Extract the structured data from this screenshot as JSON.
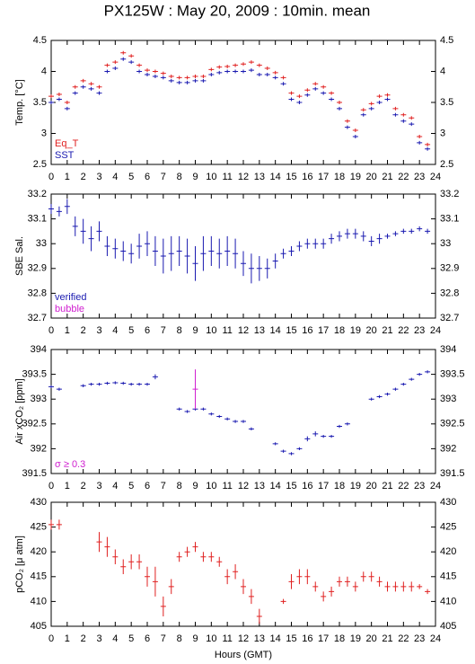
{
  "title": "PX125W : May 20, 2009 : 10min. mean",
  "chart_data": [
    {
      "type": "scatter",
      "ylabel": "Temp. [°C]",
      "legend": "lower left",
      "xlim": [
        0,
        24
      ],
      "xticks": [
        0,
        1,
        2,
        3,
        4,
        5,
        6,
        7,
        8,
        9,
        10,
        11,
        12,
        13,
        14,
        15,
        16,
        17,
        18,
        19,
        20,
        21,
        22,
        23,
        24
      ],
      "ylim": [
        2.5,
        4.5
      ],
      "yticks": [
        2.5,
        3,
        3.5,
        4,
        4.5
      ],
      "x": [
        0,
        0.5,
        1,
        1.5,
        2,
        2.5,
        3,
        3.5,
        4,
        4.5,
        5,
        5.5,
        6,
        6.5,
        7,
        7.5,
        8,
        8.5,
        9,
        9.5,
        10,
        10.5,
        11,
        11.5,
        12,
        12.5,
        13,
        13.5,
        14,
        14.5,
        15,
        15.5,
        16,
        16.5,
        17,
        17.5,
        18,
        18.5,
        19,
        19.5,
        20,
        20.5,
        21,
        21.5,
        22,
        22.5,
        23,
        23.5
      ],
      "series": [
        {
          "name": "Eq_T",
          "color": "#e02020",
          "values": [
            3.6,
            3.63,
            3.5,
            3.75,
            3.85,
            3.8,
            3.75,
            4.1,
            4.15,
            4.3,
            4.25,
            4.1,
            4.02,
            4.0,
            3.97,
            3.92,
            3.9,
            3.9,
            3.92,
            3.92,
            4.03,
            4.07,
            4.08,
            4.1,
            4.12,
            4.15,
            4.1,
            4.05,
            3.98,
            3.9,
            3.65,
            3.6,
            3.7,
            3.8,
            3.75,
            3.65,
            3.5,
            3.2,
            3.05,
            3.38,
            3.48,
            3.6,
            3.62,
            3.4,
            3.3,
            3.25,
            2.95,
            2.82
          ]
        },
        {
          "name": "SST",
          "color": "#1a1ab0",
          "values": [
            3.5,
            3.55,
            3.4,
            3.65,
            3.75,
            3.72,
            3.65,
            4.0,
            4.05,
            4.2,
            4.15,
            4.0,
            3.95,
            3.92,
            3.9,
            3.85,
            3.82,
            3.82,
            3.85,
            3.85,
            3.95,
            3.98,
            4.0,
            4.0,
            4.0,
            4.02,
            3.95,
            3.95,
            3.9,
            3.8,
            3.55,
            3.5,
            3.62,
            3.72,
            3.65,
            3.55,
            3.4,
            3.1,
            2.95,
            3.3,
            3.4,
            3.5,
            3.55,
            3.3,
            3.2,
            3.15,
            2.85,
            2.75
          ]
        }
      ]
    },
    {
      "type": "scatter",
      "ylabel": "SBE Sal.",
      "legend": "lower left",
      "xlim": [
        0,
        24
      ],
      "xticks": [
        0,
        1,
        2,
        3,
        4,
        5,
        6,
        7,
        8,
        9,
        10,
        11,
        12,
        13,
        14,
        15,
        16,
        17,
        18,
        19,
        20,
        21,
        22,
        23,
        24
      ],
      "ylim": [
        32.7,
        33.2
      ],
      "yticks": [
        32.7,
        32.8,
        32.9,
        33,
        33.1,
        33.2
      ],
      "x": [
        0,
        0.5,
        1,
        1.5,
        2,
        2.5,
        3,
        3.5,
        4,
        4.5,
        5,
        5.5,
        6,
        6.5,
        7,
        7.5,
        8,
        8.5,
        9,
        9.5,
        10,
        10.5,
        11,
        11.5,
        12,
        12.5,
        13,
        13.5,
        14,
        14.5,
        15,
        15.5,
        16,
        16.5,
        17,
        17.5,
        18,
        18.5,
        19,
        19.5,
        20,
        20.5,
        21,
        21.5,
        22,
        22.5,
        23,
        23.5
      ],
      "series": [
        {
          "name": "verified",
          "color": "#1a1ab0",
          "values": [
            33.14,
            33.13,
            33.15,
            33.07,
            33.05,
            33.02,
            33.05,
            32.99,
            32.98,
            32.97,
            32.96,
            32.99,
            33.0,
            32.97,
            32.95,
            32.96,
            32.97,
            32.95,
            32.92,
            32.96,
            32.97,
            32.96,
            32.97,
            32.96,
            32.92,
            32.9,
            32.9,
            32.9,
            32.93,
            32.96,
            32.97,
            32.99,
            33.0,
            33.0,
            33.0,
            33.02,
            33.03,
            33.04,
            33.04,
            33.03,
            33.01,
            33.02,
            33.03,
            33.04,
            33.05,
            33.05,
            33.06,
            33.05
          ],
          "errors": [
            0.02,
            0.02,
            0.03,
            0.04,
            0.05,
            0.05,
            0.04,
            0.04,
            0.04,
            0.04,
            0.04,
            0.05,
            0.05,
            0.06,
            0.07,
            0.07,
            0.06,
            0.07,
            0.07,
            0.07,
            0.06,
            0.06,
            0.06,
            0.06,
            0.05,
            0.06,
            0.05,
            0.04,
            0.03,
            0.02,
            0.02,
            0.02,
            0.02,
            0.02,
            0.02,
            0.02,
            0.02,
            0.02,
            0.02,
            0.02,
            0.02,
            0.02,
            0.01,
            0.01,
            0.01,
            0.01,
            0.01,
            0.01
          ]
        },
        {
          "name": "bubble",
          "color": "#d020d0",
          "values": [
            null,
            null,
            null,
            null,
            null,
            null,
            null,
            null,
            null,
            null,
            null,
            null,
            null,
            null,
            null,
            null,
            null,
            null,
            null,
            null,
            null,
            null,
            null,
            null,
            null,
            null,
            null,
            null,
            null,
            null,
            null,
            null,
            null,
            null,
            null,
            null,
            null,
            null,
            null,
            null,
            null,
            null,
            null,
            null,
            null,
            null,
            null,
            null
          ]
        }
      ]
    },
    {
      "type": "scatter",
      "ylabel": "Air xCO₂ [ppm]",
      "legend": "lower left",
      "xlim": [
        0,
        24
      ],
      "xticks": [
        0,
        1,
        2,
        3,
        4,
        5,
        6,
        7,
        8,
        9,
        10,
        11,
        12,
        13,
        14,
        15,
        16,
        17,
        18,
        19,
        20,
        21,
        22,
        23,
        24
      ],
      "ylim": [
        391.5,
        394
      ],
      "yticks": [
        391.5,
        392,
        392.5,
        393,
        393.5,
        394
      ],
      "x": [
        0,
        0.5,
        1,
        1.5,
        2,
        2.5,
        3,
        3.5,
        4,
        4.5,
        5,
        5.5,
        6,
        6.5,
        7,
        7.5,
        8,
        8.5,
        9,
        9.5,
        10,
        10.5,
        11,
        11.5,
        12,
        12.5,
        13,
        13.5,
        14,
        14.5,
        15,
        15.5,
        16,
        16.5,
        17,
        17.5,
        18,
        18.5,
        19,
        19.5,
        20,
        20.5,
        21,
        21.5,
        22,
        22.5,
        23,
        23.5
      ],
      "series": [
        {
          "color": "#1a1ab0",
          "values": [
            393.25,
            393.2,
            null,
            null,
            393.27,
            393.3,
            393.3,
            393.32,
            393.33,
            393.32,
            393.3,
            393.3,
            393.3,
            393.45,
            null,
            null,
            392.8,
            392.75,
            392.8,
            392.8,
            392.7,
            392.65,
            392.6,
            392.55,
            392.55,
            392.4,
            null,
            null,
            392.1,
            391.95,
            391.9,
            392.0,
            392.2,
            392.3,
            392.25,
            392.25,
            392.45,
            392.5,
            null,
            null,
            393.0,
            393.05,
            393.1,
            393.2,
            393.3,
            393.4,
            393.5,
            393.55
          ],
          "errors": [
            0.03,
            0.03,
            null,
            null,
            0.03,
            0.03,
            0.03,
            0.03,
            0.03,
            0.03,
            0.03,
            0.03,
            0.03,
            0.05,
            null,
            null,
            0.03,
            0.03,
            0.03,
            0.03,
            0.03,
            0.03,
            0.03,
            0.03,
            0.03,
            0.03,
            null,
            null,
            0.03,
            0.03,
            0.03,
            0.03,
            0.05,
            0.05,
            0.03,
            0.03,
            0.03,
            0.03,
            null,
            null,
            0.03,
            0.03,
            0.03,
            0.03,
            0.03,
            0.03,
            0.03,
            0.03
          ]
        },
        {
          "name": "σ ≥ 0.3",
          "color": "#d020d0",
          "values": [
            null,
            null,
            null,
            null,
            null,
            null,
            null,
            null,
            null,
            null,
            null,
            null,
            null,
            null,
            null,
            null,
            null,
            null,
            393.2,
            null,
            null,
            null,
            null,
            null,
            null,
            null,
            null,
            null,
            null,
            null,
            null,
            null,
            null,
            null,
            null,
            null,
            null,
            null,
            null,
            null,
            null,
            null,
            null,
            null,
            null,
            null,
            null,
            null
          ],
          "errors": [
            null,
            null,
            null,
            null,
            null,
            null,
            null,
            null,
            null,
            null,
            null,
            null,
            null,
            null,
            null,
            null,
            null,
            null,
            0.4,
            null,
            null,
            null,
            null,
            null,
            null,
            null,
            null,
            null,
            null,
            null,
            null,
            null,
            null,
            null,
            null,
            null,
            null,
            null,
            null,
            null,
            null,
            null,
            null,
            null,
            null,
            null,
            null,
            null
          ]
        }
      ]
    },
    {
      "type": "scatter",
      "ylabel": "pCO₂ [μ atm]",
      "xlabel": "Hours (GMT)",
      "xlim": [
        0,
        24
      ],
      "xticks": [
        0,
        1,
        2,
        3,
        4,
        5,
        6,
        7,
        8,
        9,
        10,
        11,
        12,
        13,
        14,
        15,
        16,
        17,
        18,
        19,
        20,
        21,
        22,
        23,
        24
      ],
      "ylim": [
        405,
        430
      ],
      "yticks": [
        405,
        410,
        415,
        420,
        425,
        430
      ],
      "x": [
        0,
        0.5,
        1,
        1.5,
        2,
        2.5,
        3,
        3.5,
        4,
        4.5,
        5,
        5.5,
        6,
        6.5,
        7,
        7.5,
        8,
        8.5,
        9,
        9.5,
        10,
        10.5,
        11,
        11.5,
        12,
        12.5,
        13,
        13.5,
        14,
        14.5,
        15,
        15.5,
        16,
        16.5,
        17,
        17.5,
        18,
        18.5,
        19,
        19.5,
        20,
        20.5,
        21,
        21.5,
        22,
        22.5,
        23,
        23.5
      ],
      "series": [
        {
          "color": "#e02020",
          "values": [
            425.5,
            425.5,
            null,
            null,
            null,
            null,
            422,
            421,
            419,
            417,
            418,
            418,
            415,
            414,
            409,
            413,
            419,
            420,
            421,
            419,
            419,
            418,
            415,
            416,
            413,
            411,
            407,
            null,
            null,
            410,
            414,
            415,
            415,
            413,
            411,
            412,
            414,
            414,
            413,
            415,
            415,
            414,
            413,
            413,
            413,
            413,
            413,
            412
          ],
          "errors": [
            1,
            1,
            null,
            null,
            null,
            null,
            2,
            2,
            1.5,
            1.5,
            1.5,
            1.5,
            2,
            3,
            2,
            1.5,
            1,
            1,
            1,
            1,
            1,
            1,
            1.5,
            1.5,
            1.5,
            1.5,
            1.5,
            null,
            null,
            0.5,
            1.5,
            1.5,
            1.5,
            1,
            1,
            1,
            1,
            1,
            1,
            1,
            1,
            1,
            1,
            1,
            1,
            1,
            0.5,
            0.5
          ]
        }
      ]
    }
  ]
}
